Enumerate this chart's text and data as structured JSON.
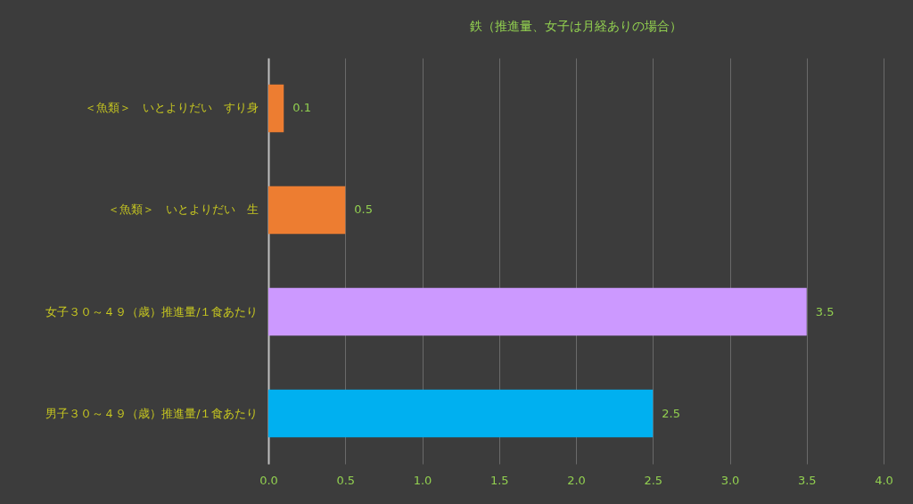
{
  "chart_data": {
    "type": "bar",
    "orientation": "horizontal",
    "title": "鉄（推進量、女子は月経ありの場合）",
    "categories": [
      "＜魚類＞　いとよりだい　すり身",
      "＜魚類＞　いとよりだい　生",
      "女子３０～４９（歳）推進量/１食あたり",
      "男子３０～４９（歳）推進量/１食あたり"
    ],
    "values": [
      0.1,
      0.5,
      3.5,
      2.5
    ],
    "colors": [
      "#ed7d31",
      "#ed7d31",
      "#cc99ff",
      "#00b0f0"
    ],
    "xlim": [
      0,
      4
    ],
    "xticks": [
      {
        "value": 0,
        "label": "0.0"
      },
      {
        "value": 0.5,
        "label": "0.5"
      },
      {
        "value": 1,
        "label": "1.0"
      },
      {
        "value": 1.5,
        "label": "1.5"
      },
      {
        "value": 2,
        "label": "2.0"
      },
      {
        "value": 2.5,
        "label": "2.5"
      },
      {
        "value": 3,
        "label": "3.0"
      },
      {
        "value": 3.5,
        "label": "3.5"
      },
      {
        "value": 4,
        "label": "4.0"
      }
    ],
    "grid": "x",
    "data_labels": true
  }
}
